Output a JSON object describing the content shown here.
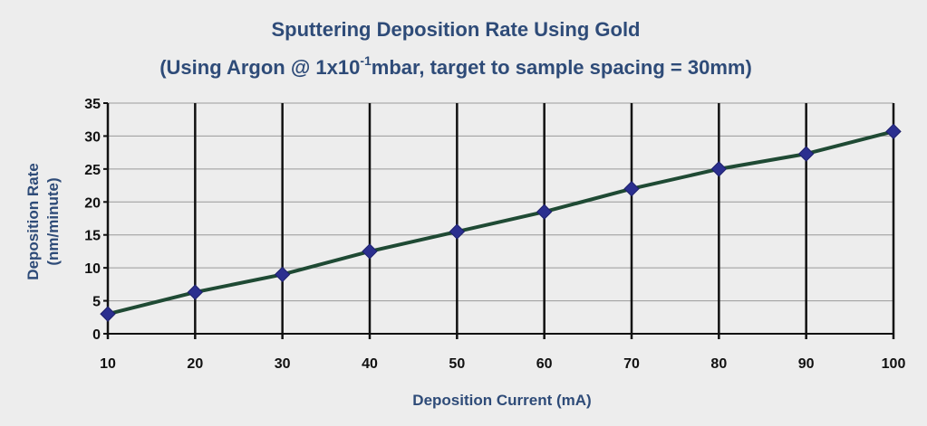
{
  "chart_data": {
    "type": "line",
    "title": "Sputtering Deposition Rate Using Gold",
    "subtitle_parts": {
      "prefix": "(Using Argon @ 1x10",
      "superscript": "-1",
      "suffix": "mbar, target to sample spacing = 30mm)"
    },
    "xlabel": "Deposition Current (mA)",
    "ylabel_lines": [
      "Deposition Rate",
      "(nm/minute)"
    ],
    "x": [
      10,
      20,
      30,
      40,
      50,
      60,
      70,
      80,
      90,
      100
    ],
    "series": [
      {
        "values": [
          3.0,
          6.3,
          9.0,
          12.5,
          15.5,
          18.5,
          22.0,
          25.0,
          27.3,
          30.7
        ]
      }
    ],
    "xlim": [
      10,
      100
    ],
    "ylim": [
      0,
      35
    ],
    "x_ticks": [
      "10",
      "20",
      "30",
      "40",
      "50",
      "60",
      "70",
      "80",
      "90",
      "100"
    ],
    "y_ticks": [
      "0",
      "5",
      "10",
      "15",
      "20",
      "25",
      "30",
      "35"
    ],
    "grid": true,
    "colors": {
      "line": "#1f4a34",
      "marker": "#2b2f8f",
      "text": "#2e4b78"
    }
  }
}
